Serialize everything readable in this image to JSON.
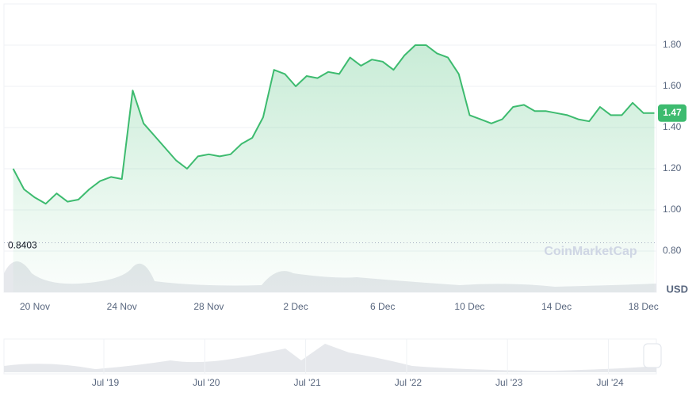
{
  "chart_data": {
    "type": "line",
    "categories": [
      null,
      null,
      "20 Nov",
      null,
      null,
      null,
      null,
      null,
      null,
      null,
      "24 Nov",
      null,
      null,
      null,
      null,
      null,
      null,
      null,
      "28 Nov",
      null,
      null,
      null,
      null,
      null,
      null,
      null,
      "2 Dec",
      null,
      null,
      null,
      null,
      null,
      null,
      null,
      "6 Dec",
      null,
      null,
      null,
      null,
      null,
      null,
      null,
      "10 Dec",
      null,
      null,
      null,
      null,
      null,
      null,
      null,
      "14 Dec",
      null,
      null,
      null,
      null,
      null,
      null,
      null,
      "18 Dec",
      null
    ],
    "series": [
      {
        "color": "#3dbb6f",
        "values": [
          1.2,
          1.1,
          1.06,
          1.03,
          1.08,
          1.04,
          1.05,
          1.1,
          1.14,
          1.16,
          1.15,
          1.58,
          1.42,
          1.36,
          1.3,
          1.24,
          1.2,
          1.26,
          1.27,
          1.26,
          1.27,
          1.32,
          1.35,
          1.45,
          1.68,
          1.66,
          1.6,
          1.65,
          1.64,
          1.67,
          1.66,
          1.74,
          1.7,
          1.73,
          1.72,
          1.68,
          1.75,
          1.8,
          1.8,
          1.76,
          1.74,
          1.66,
          1.46,
          1.44,
          1.42,
          1.44,
          1.5,
          1.51,
          1.48,
          1.48,
          1.47,
          1.46,
          1.44,
          1.43,
          1.5,
          1.46,
          1.46,
          1.52,
          1.47,
          1.47
        ]
      }
    ],
    "ylim": [
      0.6,
      2.0
    ],
    "yticks": [
      {
        "value": 0.8,
        "label": "0.80"
      },
      {
        "value": 1.0,
        "label": "1.00"
      },
      {
        "value": 1.2,
        "label": "1.20"
      },
      {
        "value": 1.4,
        "label": "1.40"
      },
      {
        "value": 1.6,
        "label": "1.60"
      },
      {
        "value": 1.8,
        "label": "1.80"
      }
    ],
    "grid": true,
    "reference": 0.8403,
    "current_price": {
      "value": 1.47,
      "label": "1.47"
    },
    "currency": "USD",
    "watermark": "CoinMarketCap",
    "navigator": {
      "labels": [
        "Jul '19",
        "Jul '20",
        "Jul '21",
        "Jul '22",
        "Jul '23",
        "Jul '24"
      ]
    }
  }
}
